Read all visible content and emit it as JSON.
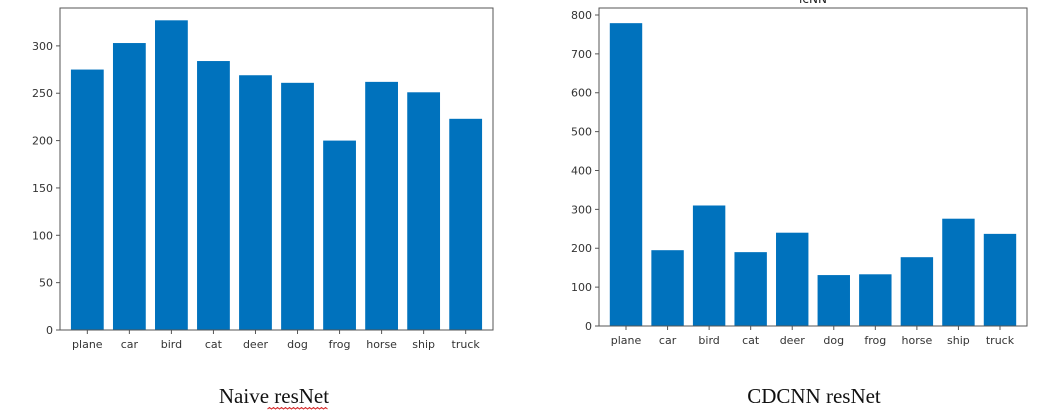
{
  "bar_color": "#0072BD",
  "spellcheck_color": "#d21f1f",
  "captions": {
    "left": "Naive resNet",
    "right": "CDCNN resNet"
  },
  "chart_data": [
    {
      "type": "bar",
      "title": "",
      "xlabel": "",
      "ylabel": "",
      "categories": [
        "plane",
        "car",
        "bird",
        "cat",
        "deer",
        "dog",
        "frog",
        "horse",
        "ship",
        "truck"
      ],
      "values": [
        275,
        303,
        327,
        284,
        269,
        261,
        200,
        262,
        251,
        223
      ],
      "ylim": [
        0,
        340
      ],
      "yticks": [
        0,
        50,
        100,
        150,
        200,
        250,
        300
      ],
      "grid": false
    },
    {
      "type": "bar",
      "title": "lcNN",
      "xlabel": "",
      "ylabel": "",
      "categories": [
        "plane",
        "car",
        "bird",
        "cat",
        "deer",
        "dog",
        "frog",
        "horse",
        "ship",
        "truck"
      ],
      "values": [
        779,
        195,
        310,
        190,
        240,
        131,
        133,
        177,
        276,
        237
      ],
      "ylim": [
        0,
        818
      ],
      "yticks": [
        0,
        100,
        200,
        300,
        400,
        500,
        600,
        700,
        800
      ],
      "grid": false
    }
  ]
}
